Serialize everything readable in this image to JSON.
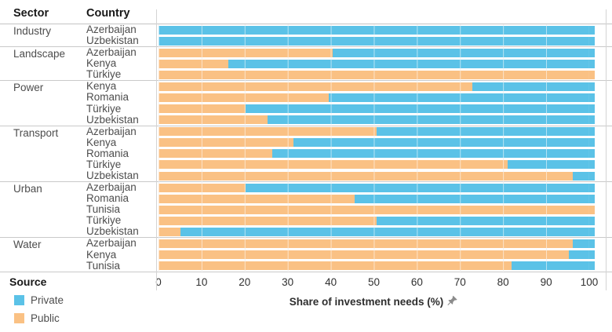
{
  "header": {
    "sector_label": "Sector",
    "country_label": "Country"
  },
  "colors": {
    "private": "#5BC2E7",
    "public": "#FAC184"
  },
  "legend": {
    "title": "Source",
    "items": [
      {
        "label": "Private",
        "color": "#5BC2E7"
      },
      {
        "label": "Public",
        "color": "#FAC184"
      }
    ]
  },
  "axis": {
    "title": "Share of investment needs (%)",
    "ticks": [
      0,
      10,
      20,
      30,
      40,
      50,
      60,
      70,
      80,
      90,
      100
    ],
    "xlim": [
      0,
      100
    ]
  },
  "chart_data": {
    "type": "bar",
    "orientation": "horizontal",
    "stacked": true,
    "unit": "percent of investment needs",
    "xlabel": "Share of investment needs (%)",
    "xlim": [
      0,
      100
    ],
    "grid": true,
    "legend_position": "bottom-left",
    "series_order": [
      "Public",
      "Private"
    ],
    "groups": [
      {
        "sector": "Industry",
        "rows": [
          {
            "country": "Azerbaijan",
            "public": 0,
            "private": 100
          },
          {
            "country": "Uzbekistan",
            "public": 0,
            "private": 100
          }
        ]
      },
      {
        "sector": "Landscape",
        "rows": [
          {
            "country": "Azerbaijan",
            "public": 40,
            "private": 60
          },
          {
            "country": "Kenya",
            "public": 16,
            "private": 84
          },
          {
            "country": "Türkiye",
            "public": 100,
            "private": 0
          }
        ]
      },
      {
        "sector": "Power",
        "rows": [
          {
            "country": "Kenya",
            "public": 72,
            "private": 28
          },
          {
            "country": "Romania",
            "public": 39,
            "private": 61
          },
          {
            "country": "Türkiye",
            "public": 20,
            "private": 80
          },
          {
            "country": "Uzbekistan",
            "public": 25,
            "private": 75
          }
        ]
      },
      {
        "sector": "Transport",
        "rows": [
          {
            "country": "Azerbaijan",
            "public": 50,
            "private": 50
          },
          {
            "country": "Kenya",
            "public": 31,
            "private": 69
          },
          {
            "country": "Romania",
            "public": 26,
            "private": 74
          },
          {
            "country": "Türkiye",
            "public": 80,
            "private": 20
          },
          {
            "country": "Uzbekistan",
            "public": 95,
            "private": 5
          }
        ]
      },
      {
        "sector": "Urban",
        "rows": [
          {
            "country": "Azerbaijan",
            "public": 20,
            "private": 80
          },
          {
            "country": "Romania",
            "public": 45,
            "private": 55
          },
          {
            "country": "Tunisia",
            "public": 100,
            "private": 0
          },
          {
            "country": "Türkiye",
            "public": 50,
            "private": 50
          },
          {
            "country": "Uzbekistan",
            "public": 5,
            "private": 95
          }
        ]
      },
      {
        "sector": "Water",
        "rows": [
          {
            "country": "Azerbaijan",
            "public": 95,
            "private": 5
          },
          {
            "country": "Kenya",
            "public": 94,
            "private": 6
          },
          {
            "country": "Tunisia",
            "public": 81,
            "private": 19
          }
        ]
      }
    ]
  }
}
